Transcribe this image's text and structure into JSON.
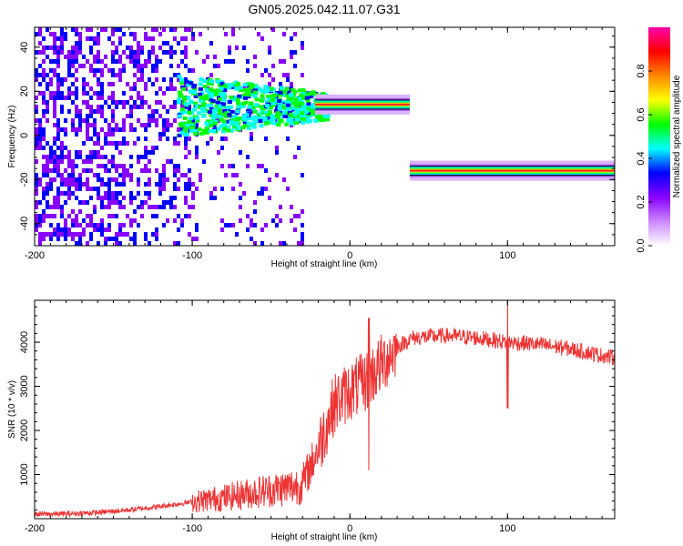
{
  "title": "GN05.2025.042.11.07.G31",
  "colors": {
    "snr_line": "#ee3333",
    "frame": "#000000",
    "background": "#ffffff"
  },
  "chart_data": [
    {
      "type": "heatmap",
      "title": "GN05.2025.042.11.07.G31",
      "xlabel": "Height of straight line (km)",
      "ylabel": "Frequency (Hz)",
      "xlim": [
        -200,
        168
      ],
      "ylim": [
        -50,
        49
      ],
      "x_ticks": [
        -200,
        -100,
        0,
        100
      ],
      "x_tick_labels": [
        "-200",
        "-100",
        "0",
        "100"
      ],
      "y_ticks": [
        -40,
        -20,
        0,
        20,
        40
      ],
      "y_tick_labels": [
        "-40",
        "-20",
        "0",
        "20",
        "40"
      ],
      "colorbar": {
        "label": "Normalized spectral amplitude",
        "range": [
          0,
          1
        ],
        "ticks": [
          0,
          0.2,
          0.4,
          0.6,
          0.8
        ],
        "tick_labels": [
          "0.0",
          "0.2",
          "0.4",
          "0.6",
          "0.8"
        ],
        "colormap": [
          "#ffffff",
          "#cc88ff",
          "#8800ff",
          "#0000ff",
          "#00ffff",
          "#00ff00",
          "#ffff00",
          "#ff8800",
          "#ff0000",
          "#ff00aa"
        ]
      },
      "segments": [
        {
          "x_start": -22,
          "x_end": 38,
          "frequency": 14
        },
        {
          "x_start": 38,
          "x_end": 168,
          "frequency": -16
        }
      ],
      "noise_region": {
        "x_start": -200,
        "x_end": -100
      },
      "grid": false
    },
    {
      "type": "line",
      "xlabel": "Height of straight line (km)",
      "ylabel": "SNR (10 * v/v)",
      "xlim": [
        -200,
        168
      ],
      "ylim": [
        0,
        4950
      ],
      "x_ticks": [
        -200,
        -100,
        0,
        100
      ],
      "x_tick_labels": [
        "-200",
        "-100",
        "0",
        "100"
      ],
      "y_ticks": [
        1000,
        2000,
        3000,
        4000
      ],
      "y_tick_labels": [
        "1000",
        "2000",
        "3000",
        "4000"
      ],
      "grid": false,
      "series": [
        {
          "x": [
            -200,
            -180,
            -160,
            -140,
            -120,
            -100,
            -80,
            -60,
            -40,
            -30,
            -20,
            -10,
            0,
            10,
            20,
            30,
            40,
            60,
            80,
            90,
            100,
            110,
            120,
            140,
            160,
            168
          ],
          "y": [
            100,
            110,
            140,
            200,
            280,
            380,
            480,
            600,
            700,
            780,
            1600,
            2600,
            2900,
            3100,
            3500,
            3900,
            4100,
            4150,
            4100,
            4050,
            4000,
            3980,
            3950,
            3850,
            3700,
            3650
          ]
        }
      ],
      "annotations": [
        {
          "x": 100,
          "spike_max": 4900,
          "spike_min": 2500
        },
        {
          "x": 12,
          "spike_max": 4550,
          "spike_min": 1100
        }
      ]
    }
  ]
}
